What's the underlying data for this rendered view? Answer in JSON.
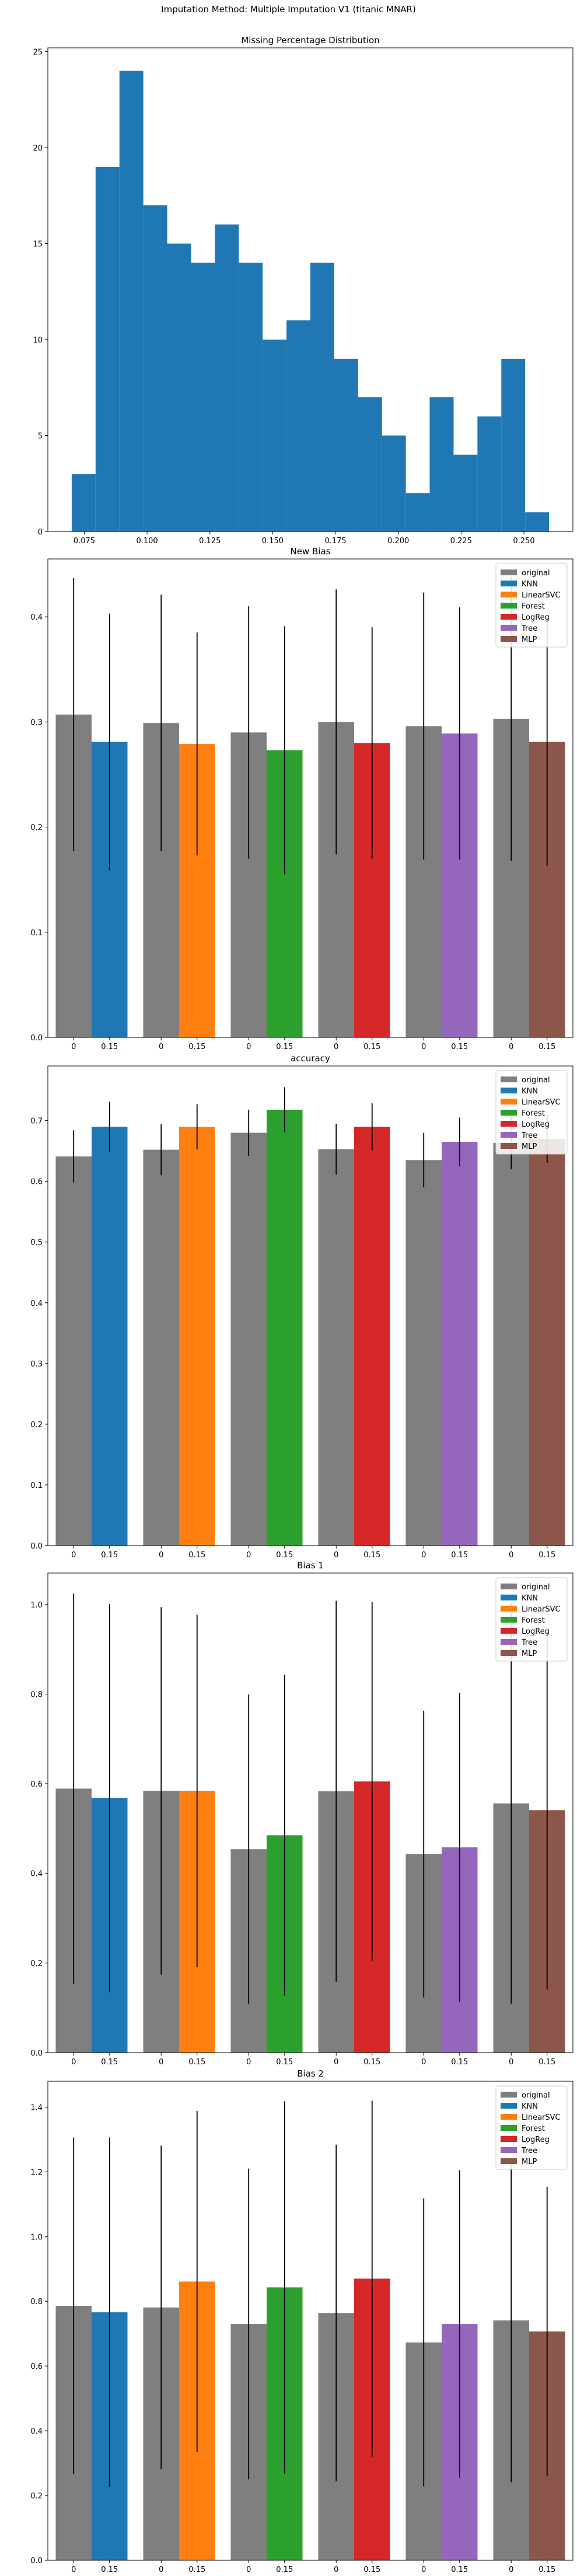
{
  "figure_title": "Imputation Method: Multiple Imputation V1 (titanic MNAR)",
  "colors": {
    "original": "#7f7f7f",
    "KNN": "#1f77b4",
    "LinearSVC": "#ff7f0e",
    "Forest": "#2ca02c",
    "LogReg": "#d62728",
    "Tree": "#9467bd",
    "MLP": "#8c564b"
  },
  "chart_data": [
    {
      "type": "bar",
      "title": "Missing Percentage Distribution",
      "xlabel": "",
      "ylabel": "",
      "histogram": true,
      "bin_edges": [
        0.07,
        0.0795,
        0.089,
        0.0985,
        0.108,
        0.1175,
        0.127,
        0.1365,
        0.146,
        0.1555,
        0.165,
        0.1745,
        0.184,
        0.1935,
        0.203,
        0.2125,
        0.222,
        0.2315,
        0.241,
        0.2505,
        0.26
      ],
      "values": [
        3,
        19,
        24,
        17,
        15,
        14,
        16,
        14,
        10,
        11,
        14,
        9,
        7,
        5,
        2,
        7,
        4,
        6,
        9,
        1
      ],
      "xlim": [
        0.0605,
        0.2695
      ],
      "ylim": [
        0,
        25.2
      ],
      "xticks": [
        "0.075",
        "0.100",
        "0.125",
        "0.150",
        "0.175",
        "0.200",
        "0.225",
        "0.250"
      ],
      "xtick_values": [
        0.075,
        0.1,
        0.125,
        0.15,
        0.175,
        0.2,
        0.225,
        0.25
      ],
      "yticks": [
        "0",
        "5",
        "10",
        "15",
        "20",
        "25"
      ],
      "ytick_values": [
        0,
        5,
        10,
        15,
        20,
        25
      ],
      "color": "#1f77b4"
    },
    {
      "type": "bar",
      "title": "New Bias",
      "xlabel": "",
      "ylabel": "",
      "categories": [
        "0",
        "0.15"
      ],
      "groups": [
        {
          "name": "KNN",
          "original": 0.307,
          "original_err": 0.13,
          "imputed": 0.281,
          "imputed_err": 0.122
        },
        {
          "name": "LinearSVC",
          "original": 0.299,
          "original_err": 0.122,
          "imputed": 0.279,
          "imputed_err": 0.106
        },
        {
          "name": "Forest",
          "original": 0.29,
          "original_err": 0.12,
          "imputed": 0.273,
          "imputed_err": 0.118
        },
        {
          "name": "LogReg",
          "original": 0.3,
          "original_err": 0.126,
          "imputed": 0.28,
          "imputed_err": 0.11
        },
        {
          "name": "Tree",
          "original": 0.296,
          "original_err": 0.127,
          "imputed": 0.289,
          "imputed_err": 0.12
        },
        {
          "name": "MLP",
          "original": 0.303,
          "original_err": 0.135,
          "imputed": 0.281,
          "imputed_err": 0.118
        }
      ],
      "ylim": [
        0,
        0.455
      ],
      "yticks": [
        "0.0",
        "0.1",
        "0.2",
        "0.3",
        "0.4"
      ],
      "ytick_values": [
        0,
        0.1,
        0.2,
        0.3,
        0.4
      ],
      "legend": [
        "original",
        "KNN",
        "LinearSVC",
        "Forest",
        "LogReg",
        "Tree",
        "MLP"
      ],
      "legend_position": "top-right"
    },
    {
      "type": "bar",
      "title": "accuracy",
      "xlabel": "",
      "ylabel": "",
      "categories": [
        "0",
        "0.15"
      ],
      "groups": [
        {
          "name": "KNN",
          "original": 0.641,
          "original_err": 0.043,
          "imputed": 0.69,
          "imputed_err": 0.041
        },
        {
          "name": "LinearSVC",
          "original": 0.652,
          "original_err": 0.042,
          "imputed": 0.69,
          "imputed_err": 0.037
        },
        {
          "name": "Forest",
          "original": 0.68,
          "original_err": 0.038,
          "imputed": 0.718,
          "imputed_err": 0.037
        },
        {
          "name": "LogReg",
          "original": 0.653,
          "original_err": 0.042,
          "imputed": 0.69,
          "imputed_err": 0.039
        },
        {
          "name": "Tree",
          "original": 0.635,
          "original_err": 0.045,
          "imputed": 0.665,
          "imputed_err": 0.04
        },
        {
          "name": "MLP",
          "original": 0.663,
          "original_err": 0.043,
          "imputed": 0.67,
          "imputed_err": 0.04
        }
      ],
      "ylim": [
        0,
        0.79
      ],
      "yticks": [
        "0.0",
        "0.1",
        "0.2",
        "0.3",
        "0.4",
        "0.5",
        "0.6",
        "0.7"
      ],
      "ytick_values": [
        0,
        0.1,
        0.2,
        0.3,
        0.4,
        0.5,
        0.6,
        0.7
      ],
      "legend": [
        "original",
        "KNN",
        "LinearSVC",
        "Forest",
        "LogReg",
        "Tree",
        "MLP"
      ],
      "legend_position": "top-right"
    },
    {
      "type": "bar",
      "title": "Bias 1",
      "xlabel": "",
      "ylabel": "",
      "categories": [
        "0",
        "0.15"
      ],
      "groups": [
        {
          "name": "KNN",
          "original": 0.589,
          "original_err": 0.435,
          "imputed": 0.568,
          "imputed_err": 0.433
        },
        {
          "name": "LinearSVC",
          "original": 0.584,
          "original_err": 0.41,
          "imputed": 0.584,
          "imputed_err": 0.393
        },
        {
          "name": "Forest",
          "original": 0.454,
          "original_err": 0.345,
          "imputed": 0.485,
          "imputed_err": 0.358
        },
        {
          "name": "LogReg",
          "original": 0.583,
          "original_err": 0.425,
          "imputed": 0.605,
          "imputed_err": 0.4
        },
        {
          "name": "Tree",
          "original": 0.443,
          "original_err": 0.32,
          "imputed": 0.458,
          "imputed_err": 0.345
        },
        {
          "name": "MLP",
          "original": 0.556,
          "original_err": 0.447,
          "imputed": 0.541,
          "imputed_err": 0.4
        }
      ],
      "ylim": [
        0,
        1.07
      ],
      "yticks": [
        "0.0",
        "0.2",
        "0.4",
        "0.6",
        "0.8",
        "1.0"
      ],
      "ytick_values": [
        0,
        0.2,
        0.4,
        0.6,
        0.8,
        1.0
      ],
      "legend": [
        "original",
        "KNN",
        "LinearSVC",
        "Forest",
        "LogReg",
        "Tree",
        "MLP"
      ],
      "legend_position": "top-right"
    },
    {
      "type": "bar",
      "title": "Bias 2",
      "xlabel": "",
      "ylabel": "",
      "categories": [
        "0",
        "0.15"
      ],
      "groups": [
        {
          "name": "KNN",
          "original": 0.786,
          "original_err": 0.52,
          "imputed": 0.766,
          "imputed_err": 0.54
        },
        {
          "name": "LinearSVC",
          "original": 0.781,
          "original_err": 0.5,
          "imputed": 0.861,
          "imputed_err": 0.527
        },
        {
          "name": "Forest",
          "original": 0.73,
          "original_err": 0.48,
          "imputed": 0.843,
          "imputed_err": 0.575
        },
        {
          "name": "LogReg",
          "original": 0.764,
          "original_err": 0.52,
          "imputed": 0.87,
          "imputed_err": 0.55
        },
        {
          "name": "Tree",
          "original": 0.673,
          "original_err": 0.445,
          "imputed": 0.73,
          "imputed_err": 0.475
        },
        {
          "name": "MLP",
          "original": 0.741,
          "original_err": 0.5,
          "imputed": 0.707,
          "imputed_err": 0.447
        }
      ],
      "ylim": [
        0,
        1.48
      ],
      "yticks": [
        "0.0",
        "0.2",
        "0.4",
        "0.6",
        "0.8",
        "1.0",
        "1.2",
        "1.4"
      ],
      "ytick_values": [
        0,
        0.2,
        0.4,
        0.6,
        0.8,
        1.0,
        1.2,
        1.4
      ],
      "legend": [
        "original",
        "KNN",
        "LinearSVC",
        "Forest",
        "LogReg",
        "Tree",
        "MLP"
      ],
      "legend_position": "top-right"
    }
  ]
}
